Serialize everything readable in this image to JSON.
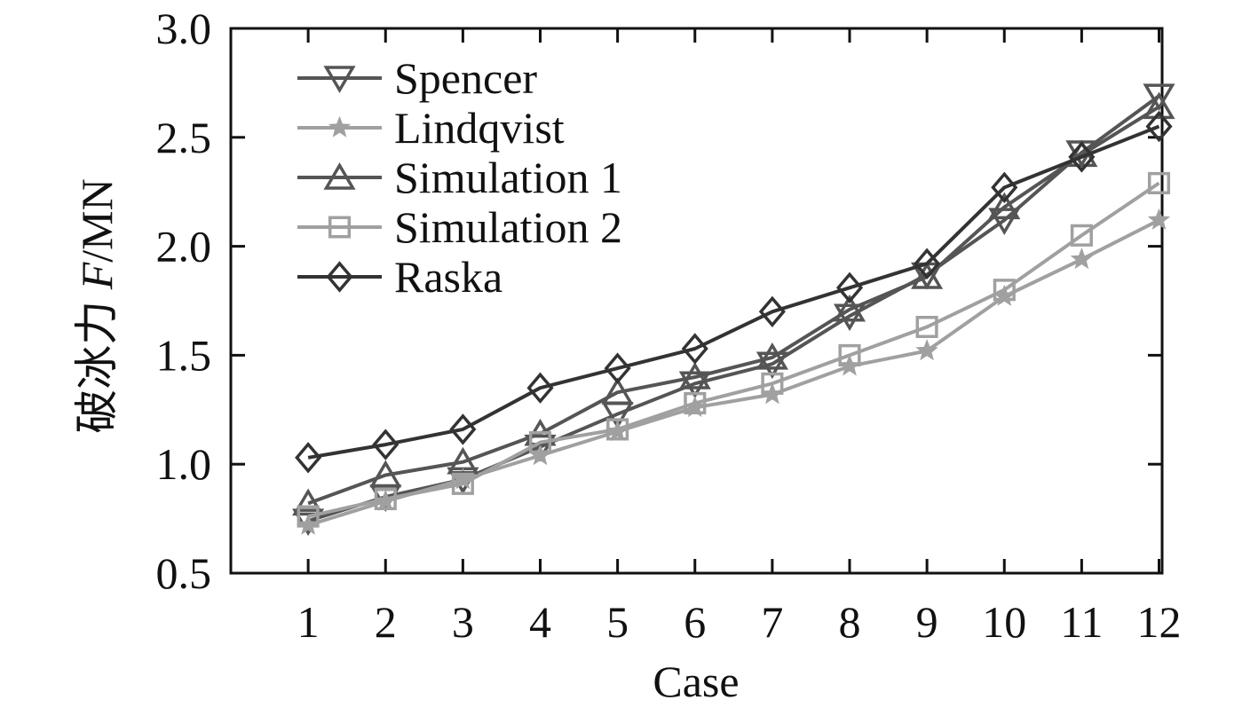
{
  "chart_data": {
    "type": "line",
    "xlabel": "Case",
    "ylabel_main": "破冰力 ",
    "ylabel_italic": "F",
    "ylabel_unit": "/MN",
    "x": [
      1,
      2,
      3,
      4,
      5,
      6,
      7,
      8,
      9,
      10,
      11,
      12
    ],
    "xlim": [
      0,
      12.04
    ],
    "ylim": [
      0.5,
      3.0
    ],
    "yticks": [
      "0.5",
      "1.0",
      "1.5",
      "2.0",
      "2.5",
      "3.0"
    ],
    "ytick_values": [
      0.5,
      1.0,
      1.5,
      2.0,
      2.5,
      3.0
    ],
    "grid": false,
    "legend_position": "top-left",
    "series": [
      {
        "name": "Spencer",
        "marker": "triangle-down",
        "color": "#555555",
        "values": [
          0.74,
          0.85,
          0.93,
          1.08,
          1.23,
          1.37,
          1.46,
          1.68,
          1.87,
          2.12,
          2.43,
          2.69
        ]
      },
      {
        "name": "Lindqvist",
        "marker": "star",
        "color": "#a0a0a0",
        "values": [
          0.72,
          0.83,
          0.93,
          1.04,
          1.15,
          1.26,
          1.32,
          1.45,
          1.52,
          1.77,
          1.94,
          2.12
        ]
      },
      {
        "name": "Simulation 1",
        "marker": "triangle-up",
        "color": "#555555",
        "values": [
          0.82,
          0.95,
          1.01,
          1.14,
          1.33,
          1.4,
          1.49,
          1.71,
          1.86,
          2.18,
          2.42,
          2.64
        ]
      },
      {
        "name": "Simulation 2",
        "marker": "square",
        "color": "#a0a0a0",
        "values": [
          0.76,
          0.84,
          0.91,
          1.1,
          1.16,
          1.28,
          1.37,
          1.5,
          1.63,
          1.8,
          2.05,
          2.29
        ]
      },
      {
        "name": "Raska",
        "marker": "diamond",
        "color": "#333333",
        "values": [
          1.03,
          1.09,
          1.16,
          1.35,
          1.44,
          1.53,
          1.7,
          1.81,
          1.92,
          2.27,
          2.41,
          2.55
        ]
      }
    ]
  }
}
